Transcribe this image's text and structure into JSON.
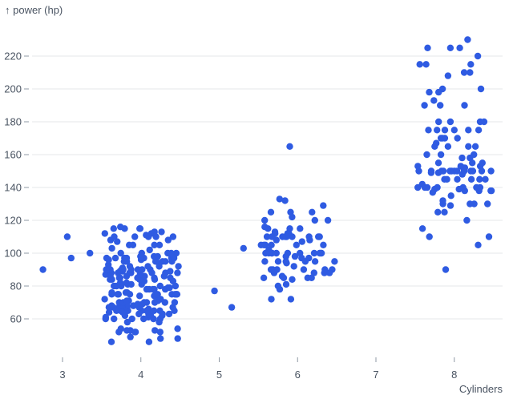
{
  "title": "↑ power (hp)",
  "colors": {
    "dot": "#2f5be2",
    "grid": "#e4e7ea",
    "tick_mark": "#8f99a4",
    "tick_text": "#4a5462",
    "background": "#ffffff"
  },
  "chart_data": {
    "type": "scatter",
    "title": "",
    "xlabel": "Cylinders",
    "ylabel": "power (hp)",
    "y_axis_title": "↑ power (hp)",
    "x_ticks": [
      3,
      4,
      5,
      6,
      7,
      8
    ],
    "y_ticks": [
      60,
      80,
      100,
      120,
      140,
      160,
      180,
      200,
      220
    ],
    "x_domain": [
      2.5,
      8.6
    ],
    "y_domain": [
      46,
      230
    ],
    "grid": "horizontal only",
    "legend": "none",
    "jitter": "uniform x-jitter of approximately ±0.48 cylinders per point",
    "groups": [
      {
        "cylinders": 3,
        "horsepower": [
          110,
          100,
          97,
          90
        ],
        "dx": [
          0.06,
          0.35,
          0.11,
          -0.25
        ]
      },
      {
        "cylinders": 5,
        "horsepower": [
          103,
          77,
          67
        ],
        "dx": [
          0.31,
          -0.06,
          0.16
        ]
      },
      {
        "cylinders": 4,
        "horsepower": [
          46,
          46,
          48,
          48,
          49,
          52,
          52,
          52,
          52,
          53,
          53,
          53,
          54,
          54,
          58,
          58,
          60,
          60,
          60,
          60,
          60,
          60,
          61,
          61,
          62,
          62,
          62,
          63,
          63,
          63,
          63,
          64,
          64,
          65,
          65,
          65,
          65,
          65,
          65,
          65,
          65,
          65,
          66,
          66,
          67,
          67,
          67,
          67,
          67,
          67,
          67,
          68,
          68,
          68,
          68,
          68,
          68,
          69,
          69,
          70,
          70,
          70,
          70,
          70,
          70,
          70,
          71,
          71,
          71,
          72,
          72,
          72,
          72,
          74,
          74,
          75,
          75,
          75,
          75,
          75,
          75,
          75,
          75,
          75,
          75,
          75,
          76,
          76,
          76,
          78,
          78,
          78,
          78,
          78,
          79,
          79,
          80,
          80,
          80,
          80,
          80,
          81,
          81,
          81,
          82,
          82,
          83,
          83,
          84,
          84,
          84,
          84,
          84,
          85,
          85,
          85,
          85,
          85,
          85,
          86,
          86,
          86,
          87,
          87,
          88,
          88,
          88,
          88,
          88,
          88,
          88,
          88,
          89,
          89,
          89,
          90,
          90,
          90,
          90,
          90,
          90,
          90,
          90,
          90,
          90,
          91,
          92,
          92,
          92,
          92,
          93,
          94,
          95,
          95,
          95,
          95,
          95,
          95,
          95,
          95,
          96,
          96,
          97,
          97,
          97,
          97,
          97,
          97,
          97,
          98,
          98,
          98,
          98,
          100,
          100,
          100,
          100,
          100,
          102,
          103,
          105,
          105,
          105,
          105,
          107,
          108,
          108,
          110,
          110,
          110,
          110,
          110,
          111,
          112,
          112,
          113,
          113,
          115,
          115,
          115,
          115,
          116
        ]
      },
      {
        "cylinders": 6,
        "horsepower": [
          165,
          133,
          132,
          129,
          125,
          125,
          125,
          122,
          120,
          120,
          120,
          116,
          115,
          115,
          115,
          113,
          112,
          112,
          112,
          110,
          110,
          110,
          110,
          110,
          110,
          110,
          110,
          110,
          108,
          108,
          107,
          105,
          105,
          105,
          105,
          105,
          105,
          102,
          100,
          100,
          100,
          100,
          100,
          100,
          100,
          100,
          100,
          100,
          100,
          100,
          98,
          98,
          97,
          97,
          95,
          95,
          95,
          95,
          95,
          95,
          94,
          92,
          90,
          90,
          90,
          90,
          90,
          90,
          88,
          88,
          88,
          88,
          86,
          85,
          85,
          85,
          85,
          84,
          81,
          80,
          78,
          72,
          72
        ],
        "dx": [
          -0.1,
          -0.23,
          -0.16,
          null,
          -0.34,
          -0.09,
          null,
          -0.07,
          0.22,
          -0.42,
          null
        ]
      },
      {
        "cylinders": 8,
        "horsepower": [
          230,
          225,
          225,
          225,
          220,
          215,
          215,
          215,
          210,
          210,
          208,
          200,
          200,
          198,
          198,
          193,
          190,
          190,
          190,
          180,
          180,
          180,
          180,
          175,
          175,
          175,
          175,
          175,
          175,
          170,
          170,
          170,
          170,
          165,
          165,
          165,
          165,
          160,
          160,
          160,
          158,
          158,
          90,
          105,
          110,
          110,
          115,
          120,
          125,
          125,
          129,
          130,
          130,
          130,
          130,
          132,
          135,
          137,
          138,
          138,
          138,
          138,
          139,
          139,
          140,
          140,
          140,
          140,
          140,
          140,
          140,
          142,
          145,
          145,
          145,
          145,
          145,
          145,
          148,
          149,
          149,
          150,
          150,
          150,
          150,
          150,
          150,
          150,
          150,
          150,
          150,
          150,
          150,
          150,
          152,
          152,
          153,
          153,
          153,
          155,
          155,
          155,
          167
        ],
        "dx": [
          0.17,
          -0.34,
          -0.05,
          0.07,
          0.3,
          -0.44,
          -0.36,
          0.21,
          0.2,
          null,
          -0.08,
          0.34,
          -0.15,
          -0.32,
          -0.2,
          -0.26,
          -0.18,
          -0.38,
          0.13,
          -0.05,
          0.33,
          0.38,
          -0.2,
          -0.33,
          -0.22,
          -0.12,
          0.0,
          0.18,
          0.31,
          -0.17,
          0.04,
          null,
          null,
          -0.25,
          -0.08,
          0.18,
          0.27,
          -0.35,
          -0.17,
          0.25,
          0.1,
          0.2,
          -0.11
        ]
      }
    ]
  }
}
